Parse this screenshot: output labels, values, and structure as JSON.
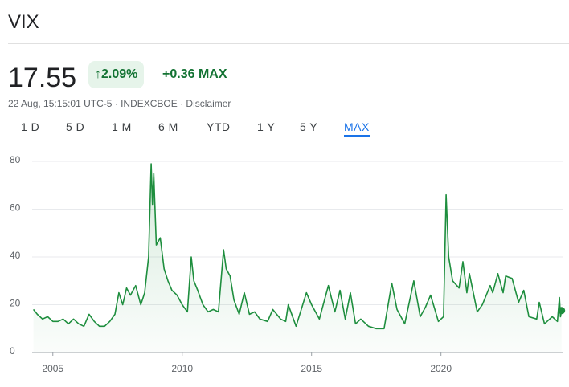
{
  "header": {
    "title": "VIX",
    "price": "17.55",
    "change_pct": "2.09%",
    "change": "+0.36",
    "period": "MAX",
    "info": "22 Aug, 15:15:01 UTC-5 · INDEXCBOE · Disclaimer"
  },
  "tabs": [
    "1 D",
    "5 D",
    "1 M",
    "6 M",
    "YTD",
    "1 Y",
    "5 Y",
    "MAX"
  ],
  "chart_data": {
    "type": "line",
    "x": [
      2004.25,
      2004.4,
      2004.6,
      2004.8,
      2005.0,
      2005.2,
      2005.4,
      2005.6,
      2005.8,
      2006.0,
      2006.2,
      2006.4,
      2006.6,
      2006.8,
      2007.0,
      2007.2,
      2007.4,
      2007.55,
      2007.7,
      2007.85,
      2008.0,
      2008.2,
      2008.4,
      2008.55,
      2008.7,
      2008.8,
      2008.85,
      2008.9,
      2009.0,
      2009.15,
      2009.3,
      2009.45,
      2009.6,
      2009.8,
      2010.0,
      2010.2,
      2010.35,
      2010.45,
      2010.6,
      2010.8,
      2011.0,
      2011.2,
      2011.4,
      2011.6,
      2011.7,
      2011.85,
      2012.0,
      2012.2,
      2012.4,
      2012.6,
      2012.8,
      2013.0,
      2013.3,
      2013.5,
      2013.8,
      2014.0,
      2014.1,
      2014.4,
      2014.8,
      2015.0,
      2015.3,
      2015.65,
      2015.9,
      2016.1,
      2016.3,
      2016.5,
      2016.7,
      2016.9,
      2017.2,
      2017.5,
      2017.8,
      2018.1,
      2018.3,
      2018.6,
      2018.95,
      2019.2,
      2019.4,
      2019.6,
      2019.9,
      2020.1,
      2020.2,
      2020.3,
      2020.45,
      2020.7,
      2020.85,
      2021.0,
      2021.1,
      2021.4,
      2021.6,
      2021.9,
      2022.0,
      2022.2,
      2022.4,
      2022.5,
      2022.75,
      2023.0,
      2023.2,
      2023.4,
      2023.7,
      2023.8,
      2024.0,
      2024.3,
      2024.5,
      2024.58,
      2024.62,
      2024.66
    ],
    "series": [
      {
        "name": "VIX",
        "color": "#1e8e3e",
        "values": [
          18,
          16,
          14,
          15,
          13,
          13,
          14,
          12,
          14,
          12,
          11,
          16,
          13,
          11,
          11,
          13,
          16,
          25,
          20,
          27,
          24,
          28,
          20,
          25,
          40,
          79,
          62,
          75,
          45,
          48,
          35,
          30,
          26,
          24,
          20,
          17,
          40,
          30,
          26,
          20,
          17,
          18,
          17,
          43,
          35,
          32,
          22,
          16,
          25,
          16,
          17,
          14,
          13,
          18,
          14,
          13,
          20,
          11,
          25,
          20,
          14,
          28,
          17,
          26,
          14,
          25,
          12,
          14,
          11,
          10,
          10,
          29,
          18,
          12,
          30,
          15,
          19,
          24,
          13,
          15,
          66,
          40,
          30,
          27,
          38,
          25,
          33,
          17,
          20,
          28,
          25,
          33,
          25,
          32,
          31,
          21,
          26,
          15,
          14,
          21,
          12,
          15,
          13,
          23,
          15,
          17.55
        ]
      }
    ],
    "xlim": [
      2004.2,
      2024.7
    ],
    "xticks": [
      2005,
      2010,
      2015,
      2020
    ],
    "ylim": [
      0,
      80
    ],
    "yticks": [
      0,
      20,
      40,
      60,
      80
    ],
    "grid": true
  }
}
